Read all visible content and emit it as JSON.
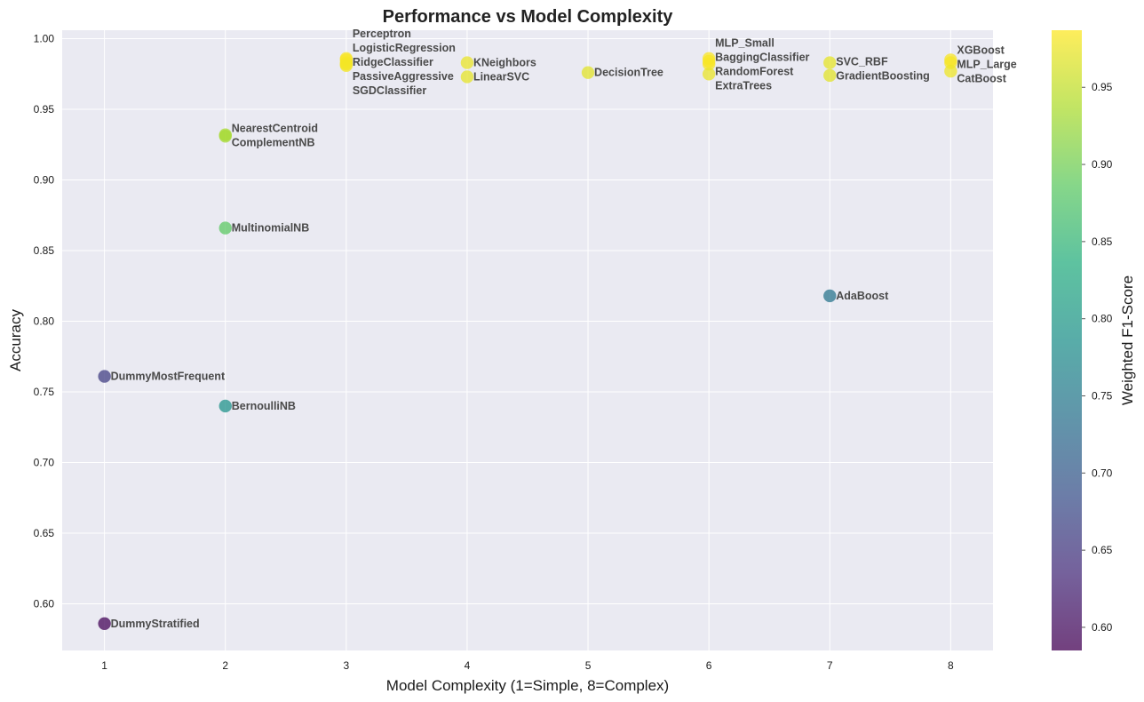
{
  "chart_data": {
    "type": "scatter",
    "title": "Performance vs Model Complexity",
    "xlabel": "Model Complexity (1=Simple, 8=Complex)",
    "ylabel": "Accuracy",
    "xlim": [
      0.65,
      8.35
    ],
    "ylim": [
      0.567,
      1.006
    ],
    "x_ticks": [
      1,
      2,
      3,
      4,
      5,
      6,
      7,
      8
    ],
    "y_ticks": [
      0.6,
      0.65,
      0.7,
      0.75,
      0.8,
      0.85,
      0.9,
      0.95,
      1.0
    ],
    "grid": true,
    "colorbar": {
      "label": "Weighted F1-Score",
      "range": [
        0.585,
        0.987
      ],
      "ticks": [
        0.6,
        0.65,
        0.7,
        0.75,
        0.8,
        0.85,
        0.9,
        0.95
      ],
      "colormap": "viridis"
    },
    "points": [
      {
        "name": "Perceptron",
        "x": 3,
        "y": 0.986,
        "f1": 0.985
      },
      {
        "name": "LogisticRegression",
        "x": 3,
        "y": 0.985,
        "f1": 0.984
      },
      {
        "name": "RidgeClassifier",
        "x": 3,
        "y": 0.983,
        "f1": 0.983
      },
      {
        "name": "PassiveAggressive",
        "x": 3,
        "y": 0.982,
        "f1": 0.982
      },
      {
        "name": "SGDClassifier",
        "x": 3,
        "y": 0.981,
        "f1": 0.981
      },
      {
        "name": "KNeighbors",
        "x": 4,
        "y": 0.983,
        "f1": 0.975
      },
      {
        "name": "LinearSVC",
        "x": 4,
        "y": 0.973,
        "f1": 0.972
      },
      {
        "name": "DecisionTree",
        "x": 5,
        "y": 0.976,
        "f1": 0.97
      },
      {
        "name": "MLP_Small",
        "x": 6,
        "y": 0.986,
        "f1": 0.985
      },
      {
        "name": "BaggingClassifier",
        "x": 6,
        "y": 0.984,
        "f1": 0.984
      },
      {
        "name": "RandomForest",
        "x": 6,
        "y": 0.982,
        "f1": 0.983
      },
      {
        "name": "ExtraTrees",
        "x": 6,
        "y": 0.975,
        "f1": 0.975
      },
      {
        "name": "SVC_RBF",
        "x": 7,
        "y": 0.983,
        "f1": 0.972
      },
      {
        "name": "GradientBoosting",
        "x": 7,
        "y": 0.974,
        "f1": 0.97
      },
      {
        "name": "XGBoost",
        "x": 8,
        "y": 0.985,
        "f1": 0.984
      },
      {
        "name": "MLP_Large",
        "x": 8,
        "y": 0.983,
        "f1": 0.982
      },
      {
        "name": "CatBoost",
        "x": 8,
        "y": 0.977,
        "f1": 0.977
      },
      {
        "name": "NearestCentroid",
        "x": 2,
        "y": 0.932,
        "f1": 0.935
      },
      {
        "name": "ComplementNB",
        "x": 2,
        "y": 0.931,
        "f1": 0.932
      },
      {
        "name": "MultinomialNB",
        "x": 2,
        "y": 0.866,
        "f1": 0.885
      },
      {
        "name": "AdaBoost",
        "x": 7,
        "y": 0.818,
        "f1": 0.74
      },
      {
        "name": "DummyMostFrequent",
        "x": 1,
        "y": 0.761,
        "f1": 0.66
      },
      {
        "name": "BernoulliNB",
        "x": 2,
        "y": 0.74,
        "f1": 0.79
      },
      {
        "name": "DummyStratified",
        "x": 1,
        "y": 0.586,
        "f1": 0.59
      }
    ]
  }
}
